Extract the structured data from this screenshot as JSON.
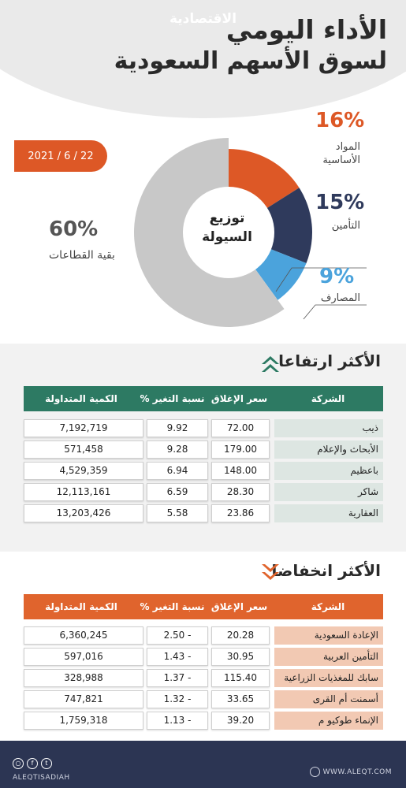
{
  "header": {
    "title_line1": "الأداء اليومي",
    "title_line2": "لسوق الأسهم السعودية",
    "date": "2021 / 6 / 22"
  },
  "liquidity": {
    "center_line1": "توزيع",
    "center_line2": "السيولة",
    "segments": [
      {
        "pct_label": "16%",
        "name_line1": "المواد",
        "name_line2": "الأساسية",
        "value": 16,
        "color": "#dd5826"
      },
      {
        "pct_label": "15%",
        "name_line1": "التأمين",
        "name_line2": "",
        "value": 15,
        "color": "#2f3a5c"
      },
      {
        "pct_label": "9%",
        "name_line1": "المصارف",
        "name_line2": "",
        "value": 9,
        "color": "#4ba3dc"
      },
      {
        "pct_label": "60%",
        "name_line1": "بقية القطاعات",
        "name_line2": "",
        "value": 60,
        "color": "#c8c8c8"
      }
    ]
  },
  "gainers": {
    "title": "الأكثر ارتفاعا",
    "color": "#2d7a63",
    "headers": {
      "company": "الشركة",
      "close": "سعر الإغلاق",
      "change": "نسبة التغير %",
      "volume": "الكمية المتداولة"
    },
    "rows": [
      {
        "company": "ذيب",
        "close": "72.00",
        "change": "9.92",
        "volume": "7,192,719"
      },
      {
        "company": "الأبحاث والإعلام",
        "close": "179.00",
        "change": "9.28",
        "volume": "571,458"
      },
      {
        "company": "باعظيم",
        "close": "148.00",
        "change": "6.94",
        "volume": "4,529,359"
      },
      {
        "company": "شاكر",
        "close": "28.30",
        "change": "6.59",
        "volume": "12,113,161"
      },
      {
        "company": "العقارية",
        "close": "23.86",
        "change": "5.58",
        "volume": "13,203,426"
      }
    ]
  },
  "losers": {
    "title": "الأكثر انخفاضا",
    "color": "#e0642d",
    "headers": {
      "company": "الشركة",
      "close": "سعر الإغلاق",
      "change": "نسبة التغير %",
      "volume": "الكمية المتداولة"
    },
    "rows": [
      {
        "company": "الإعادة السعودية",
        "close": "20.28",
        "change": "2.50 -",
        "volume": "6,360,245"
      },
      {
        "company": "التأمين العربية",
        "close": "30.95",
        "change": "1.43 -",
        "volume": "597,016"
      },
      {
        "company": "سابك للمغذيات الزراعية",
        "close": "115.40",
        "change": "1.37 -",
        "volume": "328,988"
      },
      {
        "company": "أسمنت أم القرى",
        "close": "33.65",
        "change": "1.32 -",
        "volume": "747,821"
      },
      {
        "company": "الإنماء طوكيو م",
        "close": "39.20",
        "change": "1.13 -",
        "volume": "1,759,318"
      }
    ]
  },
  "footer": {
    "logo": "الاقتصادية",
    "handle": "ALEQTISADIAH",
    "website": "WWW.ALEQT.COM",
    "social_icons": [
      "instagram-icon",
      "facebook-icon",
      "twitter-icon"
    ]
  }
}
